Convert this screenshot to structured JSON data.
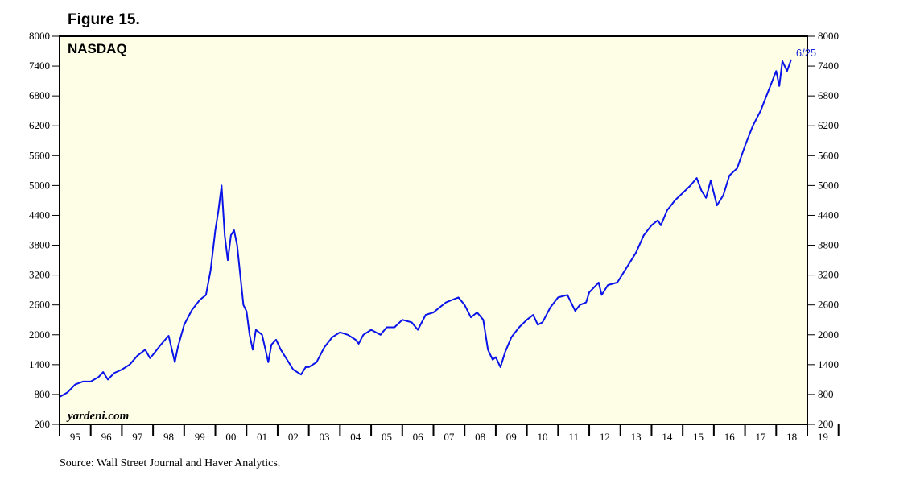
{
  "figure_label": "Figure 15.",
  "source_note": "Source: Wall Street Journal and Haver Analytics.",
  "watermark": "yardeni.com",
  "colors": {
    "plot_bg": "#fefee6",
    "line": "#0a14e8",
    "annotation": "#1a2ad8"
  },
  "chart_data": {
    "type": "line",
    "title": "NASDAQ",
    "xlabel": "",
    "ylabel": "",
    "x_range": [
      1995.0,
      2019.0
    ],
    "ylim": [
      200,
      8000
    ],
    "y_ticks": [
      200,
      800,
      1400,
      2000,
      2600,
      3200,
      3800,
      4400,
      5000,
      5600,
      6200,
      6800,
      7400,
      8000
    ],
    "x_tick_labels": [
      "95",
      "96",
      "97",
      "98",
      "99",
      "00",
      "01",
      "02",
      "03",
      "04",
      "05",
      "06",
      "07",
      "08",
      "09",
      "10",
      "11",
      "12",
      "13",
      "14",
      "15",
      "16",
      "17",
      "18",
      "19"
    ],
    "grid": false,
    "legend": "none",
    "annotation": {
      "text": "6/25",
      "x": 2018.48,
      "y": 7532
    },
    "series": [
      {
        "x": [
          1995.0,
          1995.25,
          1995.5,
          1995.75,
          1996.0,
          1996.25,
          1996.4,
          1996.55,
          1996.75,
          1997.0,
          1997.25,
          1997.5,
          1997.75,
          1997.9,
          1998.0,
          1998.25,
          1998.5,
          1998.6,
          1998.7,
          1998.8,
          1999.0,
          1999.25,
          1999.5,
          1999.7,
          1999.85,
          2000.0,
          2000.1,
          2000.2,
          2000.3,
          2000.4,
          2000.5,
          2000.6,
          2000.7,
          2000.8,
          2000.9,
          2001.0,
          2001.1,
          2001.2,
          2001.3,
          2001.5,
          2001.7,
          2001.8,
          2001.95,
          2002.1,
          2002.3,
          2002.5,
          2002.75,
          2002.9,
          2003.0,
          2003.25,
          2003.5,
          2003.75,
          2004.0,
          2004.25,
          2004.5,
          2004.6,
          2004.75,
          2005.0,
          2005.3,
          2005.5,
          2005.75,
          2006.0,
          2006.3,
          2006.5,
          2006.75,
          2007.0,
          2007.2,
          2007.4,
          2007.6,
          2007.8,
          2008.0,
          2008.2,
          2008.4,
          2008.6,
          2008.75,
          2008.9,
          2009.0,
          2009.15,
          2009.3,
          2009.5,
          2009.75,
          2010.0,
          2010.2,
          2010.35,
          2010.5,
          2010.75,
          2011.0,
          2011.3,
          2011.55,
          2011.7,
          2011.9,
          2012.0,
          2012.3,
          2012.4,
          2012.6,
          2012.9,
          2013.0,
          2013.25,
          2013.5,
          2013.75,
          2014.0,
          2014.2,
          2014.3,
          2014.5,
          2014.75,
          2015.0,
          2015.25,
          2015.45,
          2015.6,
          2015.75,
          2015.9,
          2016.1,
          2016.3,
          2016.5,
          2016.75,
          2017.0,
          2017.25,
          2017.5,
          2017.75,
          2018.0,
          2018.1,
          2018.2,
          2018.35,
          2018.48
        ],
        "values": [
          750,
          840,
          1000,
          1060,
          1060,
          1150,
          1250,
          1100,
          1230,
          1300,
          1400,
          1580,
          1700,
          1530,
          1600,
          1800,
          1980,
          1720,
          1450,
          1760,
          2200,
          2500,
          2700,
          2800,
          3300,
          4100,
          4500,
          5000,
          4000,
          3500,
          4000,
          4100,
          3800,
          3200,
          2600,
          2470,
          2000,
          1700,
          2100,
          2000,
          1450,
          1800,
          1900,
          1700,
          1500,
          1300,
          1200,
          1350,
          1350,
          1450,
          1750,
          1950,
          2050,
          2000,
          1900,
          1820,
          2000,
          2100,
          2000,
          2150,
          2150,
          2300,
          2250,
          2100,
          2400,
          2450,
          2550,
          2650,
          2700,
          2750,
          2600,
          2350,
          2450,
          2300,
          1700,
          1500,
          1550,
          1350,
          1650,
          1950,
          2150,
          2300,
          2400,
          2200,
          2250,
          2550,
          2750,
          2800,
          2480,
          2600,
          2650,
          2850,
          3050,
          2800,
          3000,
          3050,
          3150,
          3400,
          3650,
          4000,
          4200,
          4300,
          4200,
          4500,
          4700,
          4850,
          5000,
          5150,
          4900,
          4750,
          5100,
          4600,
          4800,
          5200,
          5350,
          5800,
          6200,
          6500,
          6900,
          7300,
          7000,
          7500,
          7300,
          7532
        ]
      }
    ]
  }
}
